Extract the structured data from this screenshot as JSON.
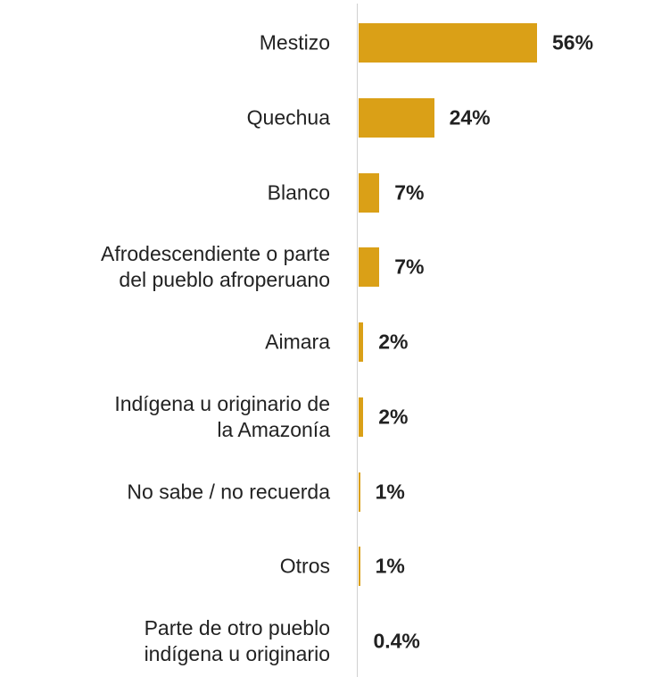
{
  "chart_data": {
    "type": "bar",
    "orientation": "horizontal",
    "categories": [
      "Mestizo",
      "Quechua",
      "Blanco",
      "Afrodescendiente o parte\ndel pueblo afroperuano",
      "Aimara",
      "Indígena u originario de\nla Amazonía",
      "No sabe / no recuerda",
      "Otros",
      "Parte de otro pueblo\nindígena u originario"
    ],
    "values": [
      56,
      24,
      7,
      7,
      2,
      2,
      1,
      1,
      0.4
    ],
    "value_labels": [
      "56%",
      "24%",
      "7%",
      "7%",
      "2%",
      "2%",
      "1%",
      "1%",
      "0.4%"
    ],
    "color": "#daa017"
  }
}
